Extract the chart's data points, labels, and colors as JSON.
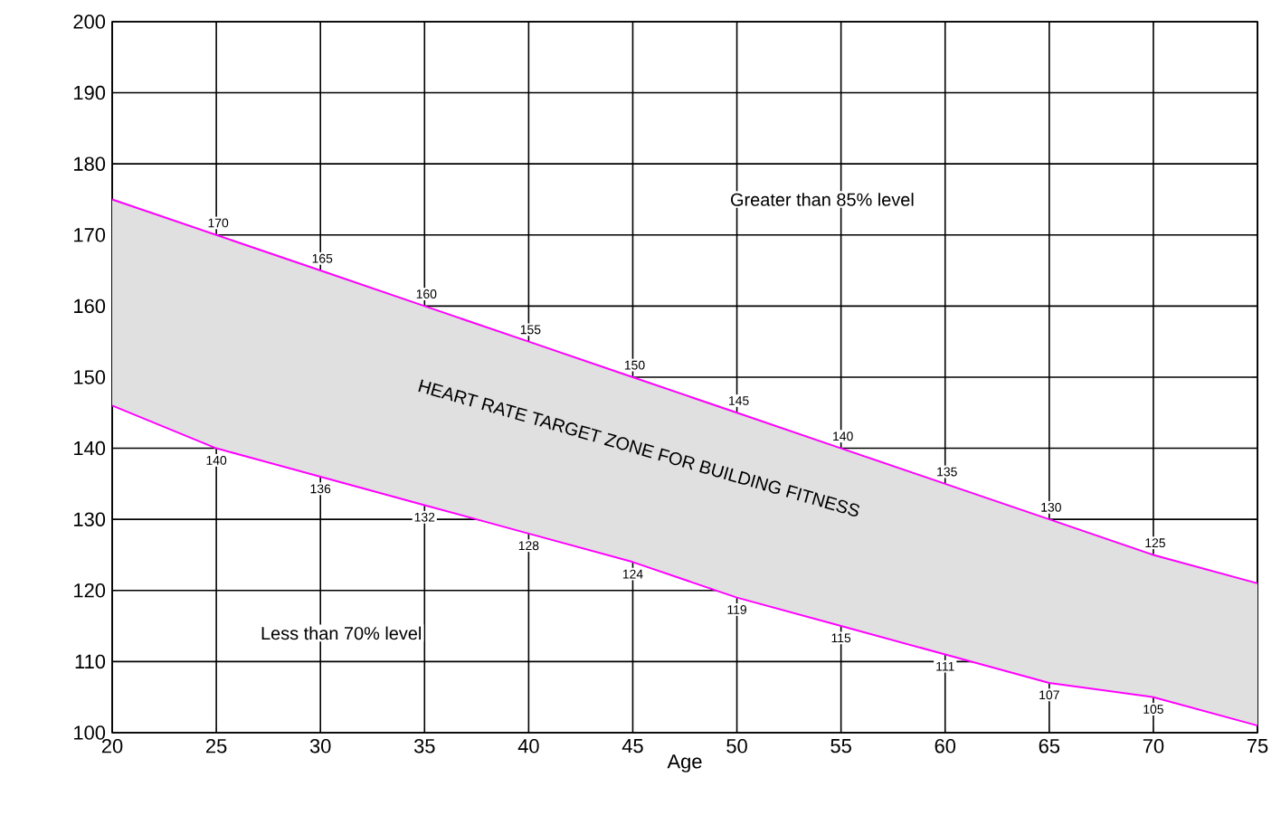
{
  "chart_data": {
    "type": "line",
    "xlabel": "Age",
    "x": [
      20,
      25,
      30,
      35,
      40,
      45,
      50,
      55,
      60,
      65,
      70,
      75
    ],
    "series": [
      {
        "color": "#ff00ff",
        "values": [
          175,
          170,
          165,
          160,
          155,
          150,
          145,
          140,
          135,
          130,
          125,
          121
        ],
        "lower": [
          146,
          140,
          136,
          132,
          128,
          124,
          119,
          115,
          111,
          107,
          105,
          101
        ],
        "upper": [
          175,
          170,
          165,
          160,
          155,
          150,
          145,
          140,
          135,
          130,
          125,
          121
        ],
        "value_labels": [
          null,
          "170",
          "165",
          "160",
          "155",
          "150",
          "145",
          "140",
          "135",
          "130",
          "125",
          null
        ]
      },
      {
        "color": "#ff00ff",
        "values": [
          146,
          140,
          136,
          132,
          128,
          124,
          119,
          115,
          111,
          107,
          105,
          101
        ],
        "value_labels": [
          null,
          "140",
          "136",
          "132",
          "128",
          "124",
          "119",
          "115",
          "111",
          "107",
          "105",
          null
        ]
      }
    ],
    "annotations": [
      "Greater than 85% level",
      "Less than 70% level",
      "HEART RATE TARGET ZONE FOR BUILDING FITNESS"
    ],
    "xlim": [
      20,
      75
    ],
    "ylim": [
      100,
      200
    ],
    "xticks": [
      20,
      25,
      30,
      35,
      40,
      45,
      50,
      55,
      60,
      65,
      70,
      75
    ],
    "yticks": [
      100,
      110,
      120,
      130,
      140,
      150,
      160,
      170,
      180,
      190,
      200
    ],
    "grid": true,
    "marker": "none",
    "line_style": "solid"
  }
}
